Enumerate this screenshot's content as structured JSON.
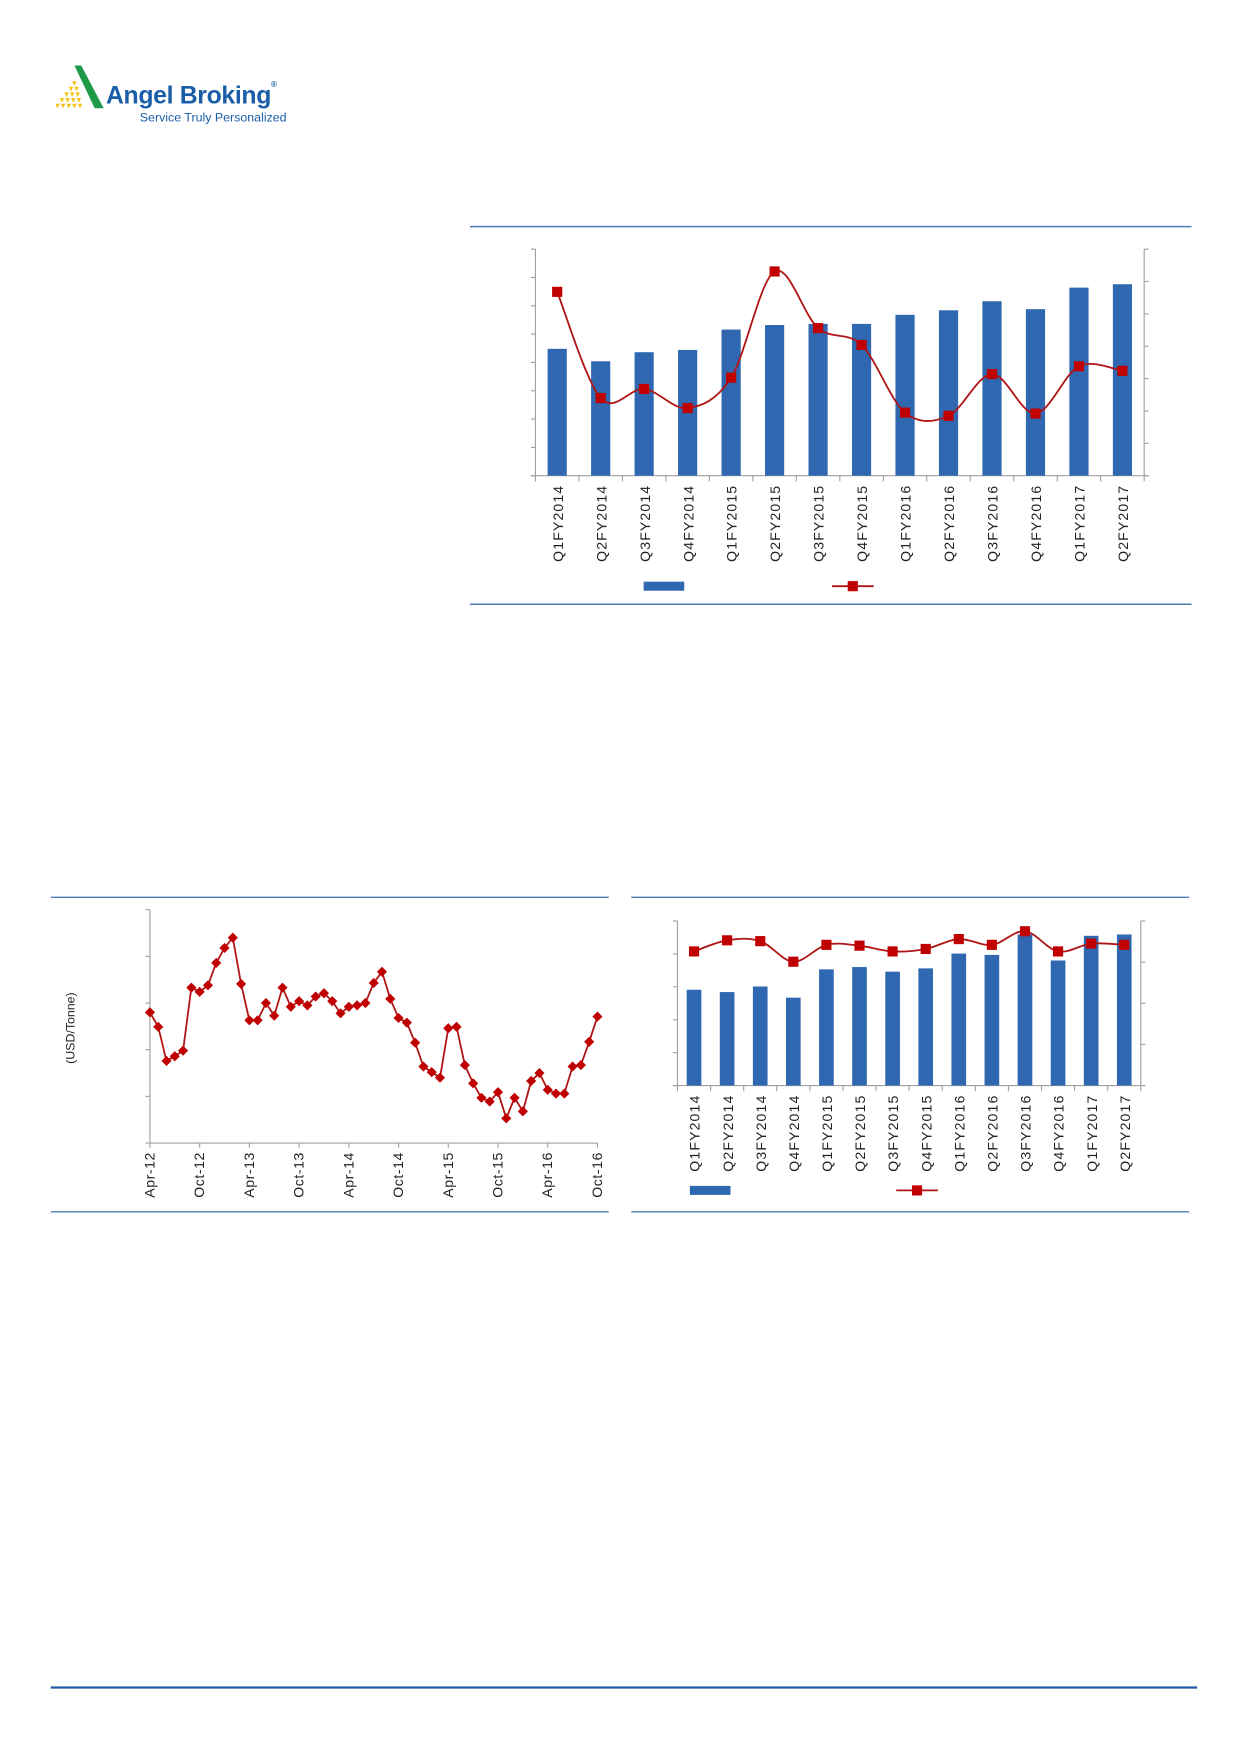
{
  "logo": {
    "name": "Angel Broking",
    "registered": "®",
    "tagline": "Service Truly Personalized"
  },
  "colors": {
    "bar": "#2f67b1",
    "line": "#c00000",
    "line_stroke": "#b01515",
    "rule": "#4f7bb3",
    "axis": "#a0a0a0"
  },
  "chart_data": [
    {
      "type": "bar+line",
      "title": "",
      "categories": [
        "Q1FY2014",
        "Q2FY2014",
        "Q3FY2014",
        "Q4FY2014",
        "Q1FY2015",
        "Q2FY2015",
        "Q3FY2015",
        "Q4FY2015",
        "Q1FY2016",
        "Q2FY2016",
        "Q3FY2016",
        "Q4FY2016",
        "Q1FY2017",
        "Q2FY2017"
      ],
      "series": [
        {
          "name": "",
          "type": "bar",
          "axis": "left",
          "values": [
            4.48,
            4.04,
            4.36,
            4.44,
            5.16,
            5.32,
            5.36,
            5.36,
            5.68,
            5.84,
            6.16,
            5.88,
            6.64,
            6.76
          ]
        },
        {
          "name": "",
          "type": "line",
          "axis": "right",
          "marker": "square",
          "smooth": true,
          "values": [
            5.68,
            2.4,
            2.68,
            2.09,
            3.03,
            6.31,
            4.56,
            4.04,
            1.95,
            1.85,
            3.14,
            1.92,
            3.38,
            3.24
          ]
        }
      ],
      "ylim_left": [
        0,
        8
      ],
      "ylim_right": [
        0,
        7
      ],
      "tick_labels_visible": false,
      "legend": "bottom"
    },
    {
      "type": "line",
      "title": "",
      "ylabel": "(USD/Tonne)",
      "x_tick_labels": [
        "Apr-12",
        "Oct-12",
        "Apr-13",
        "Oct-13",
        "Apr-14",
        "Oct-14",
        "Apr-15",
        "Oct-15",
        "Apr-16",
        "Oct-16"
      ],
      "x_range": [
        "Apr-12",
        "Oct-16"
      ],
      "series": [
        {
          "name": "",
          "marker": "diamond",
          "values": [
            2.8,
            2.49,
            1.76,
            1.86,
            1.98,
            3.33,
            3.24,
            3.38,
            3.86,
            4.18,
            4.4,
            3.41,
            2.63,
            2.63,
            3.0,
            2.73,
            3.33,
            2.92,
            3.04,
            2.95,
            3.14,
            3.21,
            3.04,
            2.78,
            2.92,
            2.95,
            3.0,
            3.43,
            3.67,
            3.09,
            2.68,
            2.58,
            2.15,
            1.64,
            1.52,
            1.4,
            2.46,
            2.49,
            1.67,
            1.28,
            0.97,
            0.89,
            1.09,
            0.53,
            0.97,
            0.68,
            1.33,
            1.5,
            1.14,
            1.06,
            1.06,
            1.64,
            1.67,
            2.17,
            2.71
          ]
        }
      ],
      "ylim": [
        0,
        5
      ],
      "tick_labels_visible": false
    },
    {
      "type": "bar+line",
      "title": "",
      "categories": [
        "Q1FY2014",
        "Q2FY2014",
        "Q3FY2014",
        "Q4FY2014",
        "Q1FY2015",
        "Q2FY2015",
        "Q3FY2015",
        "Q4FY2015",
        "Q1FY2016",
        "Q2FY2016",
        "Q3FY2016",
        "Q4FY2016",
        "Q1FY2017",
        "Q2FY2017"
      ],
      "series": [
        {
          "name": "",
          "type": "bar",
          "axis": "left",
          "values": [
            2.91,
            2.84,
            3.01,
            2.67,
            3.53,
            3.6,
            3.46,
            3.56,
            4.01,
            3.97,
            4.59,
            3.8,
            4.55,
            4.59
          ]
        },
        {
          "name": "",
          "type": "line",
          "axis": "right",
          "marker": "square",
          "smooth": true,
          "values": [
            3.26,
            3.53,
            3.51,
            3.01,
            3.42,
            3.4,
            3.26,
            3.32,
            3.56,
            3.42,
            3.75,
            3.26,
            3.45,
            3.42
          ]
        }
      ],
      "ylim_left": [
        0,
        5
      ],
      "ylim_right": [
        0,
        4
      ],
      "tick_labels_visible": false,
      "legend": "bottom"
    }
  ]
}
